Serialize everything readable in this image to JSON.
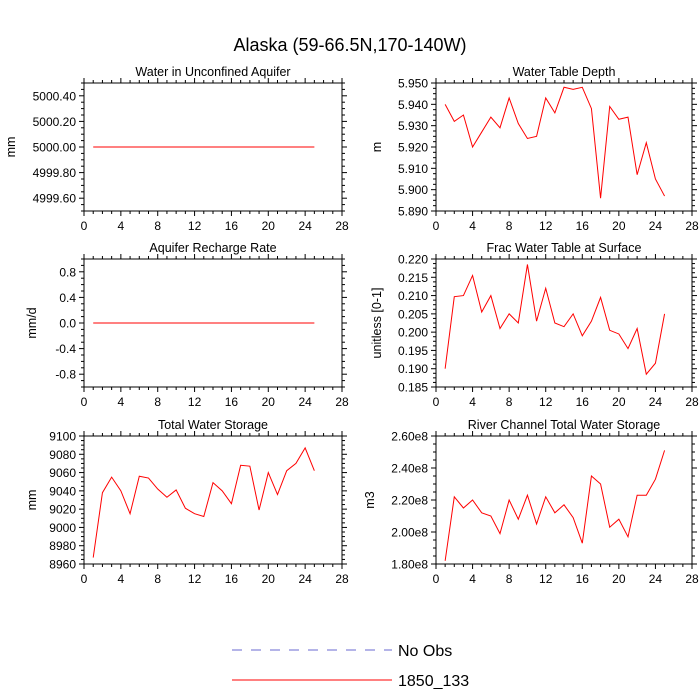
{
  "page_title": "Alaska (59-66.5N,170-140W)",
  "legend": [
    {
      "label": "No Obs",
      "color": "#6a6ad0",
      "style": "dashed"
    },
    {
      "label": "1850_133",
      "color": "#ff0000",
      "style": "solid"
    }
  ],
  "chart_data": [
    {
      "type": "line",
      "title": "Water in Unconfined Aquifer",
      "xlabel": "",
      "ylabel": "mm",
      "xlim": [
        0,
        28
      ],
      "xticks": [
        0,
        4,
        8,
        12,
        16,
        20,
        24,
        28
      ],
      "ylim": [
        4999.5,
        5000.5
      ],
      "yticks": [
        4999.6,
        4999.8,
        5000.0,
        5000.2,
        5000.4
      ],
      "ytick_labels": [
        "4999.60",
        "4999.80",
        "5000.00",
        "5000.20",
        "5000.40"
      ],
      "series": [
        {
          "name": "1850_133",
          "color": "#ff0000",
          "x": [
            1,
            2,
            3,
            4,
            5,
            6,
            7,
            8,
            9,
            10,
            11,
            12,
            13,
            14,
            15,
            16,
            17,
            18,
            19,
            20,
            21,
            22,
            23,
            24,
            25
          ],
          "values": [
            5000,
            5000,
            5000,
            5000,
            5000,
            5000,
            5000,
            5000,
            5000,
            5000,
            5000,
            5000,
            5000,
            5000,
            5000,
            5000,
            5000,
            5000,
            5000,
            5000,
            5000,
            5000,
            5000,
            5000,
            5000
          ]
        }
      ]
    },
    {
      "type": "line",
      "title": "Water Table Depth",
      "xlabel": "",
      "ylabel": "m",
      "xlim": [
        0,
        28
      ],
      "xticks": [
        0,
        4,
        8,
        12,
        16,
        20,
        24,
        28
      ],
      "ylim": [
        5.89,
        5.95
      ],
      "yticks": [
        5.89,
        5.9,
        5.91,
        5.92,
        5.93,
        5.94,
        5.95
      ],
      "ytick_labels": [
        "5.890",
        "5.900",
        "5.910",
        "5.920",
        "5.930",
        "5.940",
        "5.950"
      ],
      "series": [
        {
          "name": "1850_133",
          "color": "#ff0000",
          "x": [
            1,
            2,
            3,
            4,
            5,
            6,
            7,
            8,
            9,
            10,
            11,
            12,
            13,
            14,
            15,
            16,
            17,
            18,
            19,
            20,
            21,
            22,
            23,
            24,
            25
          ],
          "values": [
            5.94,
            5.932,
            5.935,
            5.92,
            5.927,
            5.934,
            5.929,
            5.943,
            5.931,
            5.924,
            5.925,
            5.943,
            5.936,
            5.948,
            5.947,
            5.948,
            5.938,
            5.896,
            5.939,
            5.933,
            5.934,
            5.907,
            5.922,
            5.905,
            5.897
          ]
        }
      ]
    },
    {
      "type": "line",
      "title": "Aquifer Recharge Rate",
      "xlabel": "",
      "ylabel": "mm/d",
      "xlim": [
        0,
        28
      ],
      "xticks": [
        0,
        4,
        8,
        12,
        16,
        20,
        24,
        28
      ],
      "ylim": [
        -1.0,
        1.0
      ],
      "yticks": [
        -0.8,
        -0.4,
        0.0,
        0.4,
        0.8
      ],
      "ytick_labels": [
        "-0.8",
        "-0.4",
        "0.0",
        "0.4",
        "0.8"
      ],
      "series": [
        {
          "name": "1850_133",
          "color": "#ff0000",
          "x": [
            1,
            2,
            3,
            4,
            5,
            6,
            7,
            8,
            9,
            10,
            11,
            12,
            13,
            14,
            15,
            16,
            17,
            18,
            19,
            20,
            21,
            22,
            23,
            24,
            25
          ],
          "values": [
            0,
            0,
            0,
            0,
            0,
            0,
            0,
            0,
            0,
            0,
            0,
            0,
            0,
            0,
            0,
            0,
            0,
            0,
            0,
            0,
            0,
            0,
            0,
            0,
            0
          ]
        }
      ]
    },
    {
      "type": "line",
      "title": "Frac Water Table at Surface",
      "xlabel": "",
      "ylabel": "unitless [0-1]",
      "xlim": [
        0,
        28
      ],
      "xticks": [
        0,
        4,
        8,
        12,
        16,
        20,
        24,
        28
      ],
      "ylim": [
        0.185,
        0.22
      ],
      "yticks": [
        0.185,
        0.19,
        0.195,
        0.2,
        0.205,
        0.21,
        0.215,
        0.22
      ],
      "ytick_labels": [
        "0.185",
        "0.190",
        "0.195",
        "0.200",
        "0.205",
        "0.210",
        "0.215",
        "0.220"
      ],
      "series": [
        {
          "name": "1850_133",
          "color": "#ff0000",
          "x": [
            1,
            2,
            3,
            4,
            5,
            6,
            7,
            8,
            9,
            10,
            11,
            12,
            13,
            14,
            15,
            16,
            17,
            18,
            19,
            20,
            21,
            22,
            23,
            24,
            25
          ],
          "values": [
            0.19,
            0.2097,
            0.21,
            0.2155,
            0.2055,
            0.21,
            0.201,
            0.205,
            0.2025,
            0.2185,
            0.203,
            0.212,
            0.2025,
            0.2015,
            0.205,
            0.199,
            0.203,
            0.2095,
            0.2005,
            0.1995,
            0.1955,
            0.201,
            0.1885,
            0.1915,
            0.205
          ]
        }
      ]
    },
    {
      "type": "line",
      "title": "Total Water Storage",
      "xlabel": "",
      "ylabel": "mm",
      "xlim": [
        0,
        28
      ],
      "xticks": [
        0,
        4,
        8,
        12,
        16,
        20,
        24,
        28
      ],
      "ylim": [
        8960,
        9100
      ],
      "yticks": [
        8960,
        8980,
        9000,
        9020,
        9040,
        9060,
        9080,
        9100
      ],
      "ytick_labels": [
        "8960",
        "8980",
        "9000",
        "9020",
        "9040",
        "9060",
        "9080",
        "9100"
      ],
      "series": [
        {
          "name": "1850_133",
          "color": "#ff0000",
          "x": [
            1,
            2,
            3,
            4,
            5,
            6,
            7,
            8,
            9,
            10,
            11,
            12,
            13,
            14,
            15,
            16,
            17,
            18,
            19,
            20,
            21,
            22,
            23,
            24,
            25
          ],
          "values": [
            8967,
            9038,
            9055,
            9040,
            9015,
            9056,
            9054,
            9042,
            9033,
            9041,
            9021,
            9015,
            9012,
            9049,
            9040,
            9026,
            9068,
            9067,
            9019,
            9060,
            9036,
            9062,
            9070,
            9087,
            9062
          ]
        }
      ]
    },
    {
      "type": "line",
      "title": "River Channel Total Water Storage",
      "xlabel": "",
      "ylabel": "m3",
      "xlim": [
        0,
        28
      ],
      "xticks": [
        0,
        4,
        8,
        12,
        16,
        20,
        24,
        28
      ],
      "ylim": [
        180000000,
        260000000
      ],
      "yticks": [
        180000000,
        200000000,
        220000000,
        240000000,
        260000000
      ],
      "ytick_labels": [
        "1.80e8",
        "2.00e8",
        "2.20e8",
        "2.40e8",
        "2.60e8"
      ],
      "series": [
        {
          "name": "1850_133",
          "color": "#ff0000",
          "x": [
            1,
            2,
            3,
            4,
            5,
            6,
            7,
            8,
            9,
            10,
            11,
            12,
            13,
            14,
            15,
            16,
            17,
            18,
            19,
            20,
            21,
            22,
            23,
            24,
            25
          ],
          "values": [
            182000000,
            222000000,
            215000000,
            220000000,
            212000000,
            210000000,
            199000000,
            220000000,
            208000000,
            223000000,
            205000000,
            222000000,
            212000000,
            217000000,
            209000000,
            193000000,
            235000000,
            230000000,
            203000000,
            208000000,
            197000000,
            223000000,
            223000000,
            233000000,
            251000000
          ]
        }
      ]
    }
  ]
}
